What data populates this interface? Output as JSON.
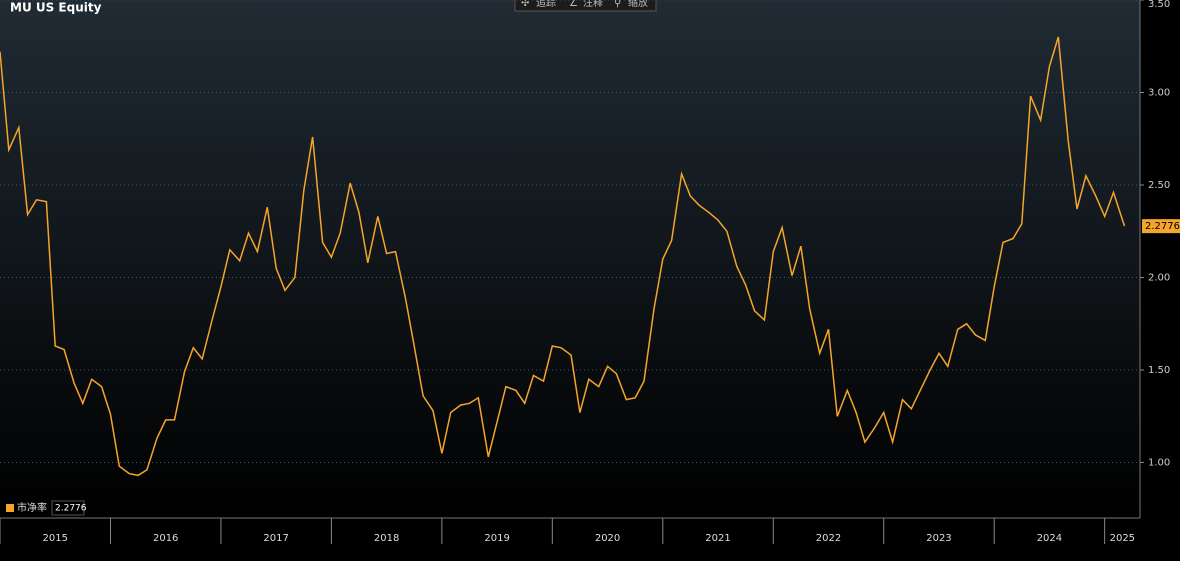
{
  "chart_data": {
    "type": "line",
    "title": "MU US Equity",
    "toolbar": [
      "追踪",
      "注释",
      "缩放"
    ],
    "x": [
      2015,
      2015.08,
      2015.17,
      2015.25,
      2015.33,
      2015.42,
      2015.5,
      2015.58,
      2015.67,
      2015.75,
      2015.83,
      2015.92,
      2016,
      2016.08,
      2016.17,
      2016.25,
      2016.33,
      2016.42,
      2016.5,
      2016.58,
      2016.67,
      2016.75,
      2016.83,
      2016.92,
      2017,
      2017.08,
      2017.17,
      2017.25,
      2017.33,
      2017.42,
      2017.5,
      2017.58,
      2017.67,
      2017.75,
      2017.83,
      2017.92,
      2018,
      2018.08,
      2018.17,
      2018.25,
      2018.33,
      2018.42,
      2018.5,
      2018.58,
      2018.67,
      2018.75,
      2018.83,
      2018.92,
      2019,
      2019.08,
      2019.17,
      2019.25,
      2019.33,
      2019.42,
      2019.5,
      2019.58,
      2019.67,
      2019.75,
      2019.83,
      2019.92,
      2020,
      2020.08,
      2020.17,
      2020.25,
      2020.33,
      2020.42,
      2020.5,
      2020.58,
      2020.67,
      2020.75,
      2020.83,
      2020.92,
      2021,
      2021.08,
      2021.17,
      2021.25,
      2021.33,
      2021.42,
      2021.5,
      2021.58,
      2021.67,
      2021.75,
      2021.83,
      2021.92,
      2022,
      2022.08,
      2022.17,
      2022.25,
      2022.33,
      2022.42,
      2022.5,
      2022.58,
      2022.67,
      2022.75,
      2022.83,
      2022.92,
      2023,
      2023.08,
      2023.17,
      2023.25,
      2023.33,
      2023.42,
      2023.5,
      2023.58,
      2023.67,
      2023.75,
      2023.83,
      2023.92,
      2024,
      2024.08,
      2024.17,
      2024.25,
      2024.33,
      2024.42,
      2024.5,
      2024.58,
      2024.67,
      2024.75,
      2024.83,
      2024.92,
      2025,
      2025.08,
      2025.18
    ],
    "series": [
      {
        "name": "市净率",
        "color": "#f5a52a",
        "values": [
          3.22,
          2.69,
          2.81,
          2.34,
          2.42,
          2.41,
          1.63,
          1.61,
          1.43,
          1.32,
          1.45,
          1.41,
          1.26,
          0.98,
          0.94,
          0.93,
          0.96,
          1.13,
          1.23,
          1.23,
          1.49,
          1.62,
          1.56,
          1.77,
          1.95,
          2.15,
          2.09,
          2.24,
          2.14,
          2.38,
          2.05,
          1.93,
          2.0,
          2.47,
          2.76,
          2.19,
          2.11,
          2.24,
          2.51,
          2.35,
          2.08,
          2.33,
          2.13,
          2.14,
          1.89,
          1.63,
          1.36,
          1.28,
          1.05,
          1.27,
          1.31,
          1.32,
          1.35,
          1.03,
          1.22,
          1.41,
          1.39,
          1.32,
          1.47,
          1.44,
          1.63,
          1.62,
          1.58,
          1.27,
          1.45,
          1.41,
          1.52,
          1.48,
          1.34,
          1.35,
          1.44,
          1.83,
          2.1,
          2.2,
          2.56,
          2.44,
          2.39,
          2.35,
          2.31,
          2.25,
          2.06,
          1.96,
          1.82,
          1.77,
          2.14,
          2.27,
          2.01,
          2.17,
          1.83,
          1.59,
          1.72,
          1.25,
          1.39,
          1.27,
          1.11,
          1.19,
          1.27,
          1.11,
          1.34,
          1.29,
          1.39,
          1.5,
          1.59,
          1.52,
          1.72,
          1.75,
          1.69,
          1.66,
          1.95,
          2.19,
          2.21,
          2.29,
          2.98,
          2.85,
          3.14,
          3.3,
          2.74,
          2.37,
          2.55,
          2.44,
          2.33,
          2.46,
          2.2776
        ]
      }
    ],
    "xlim": [
      2015,
      2025.32
    ],
    "xticks": [
      {
        "value": 2015,
        "label": "2015"
      },
      {
        "value": 2016,
        "label": "2016"
      },
      {
        "value": 2017,
        "label": "2017"
      },
      {
        "value": 2018,
        "label": "2018"
      },
      {
        "value": 2019,
        "label": "2019"
      },
      {
        "value": 2020,
        "label": "2020"
      },
      {
        "value": 2021,
        "label": "2021"
      },
      {
        "value": 2022,
        "label": "2022"
      },
      {
        "value": 2023,
        "label": "2023"
      },
      {
        "value": 2024,
        "label": "2024"
      },
      {
        "value": 2025,
        "label": "2025"
      }
    ],
    "ylim": [
      0.7,
      3.5
    ],
    "yticks": [
      {
        "value": 1,
        "label": "1.00"
      },
      {
        "value": 1.5,
        "label": "1.50"
      },
      {
        "value": 2,
        "label": "2.00"
      },
      {
        "value": 2.5,
        "label": "2.50"
      },
      {
        "value": 3,
        "label": "3.00"
      },
      {
        "value": 3.5,
        "label": "3.50"
      }
    ],
    "grid": true,
    "legend": "lower left"
  }
}
